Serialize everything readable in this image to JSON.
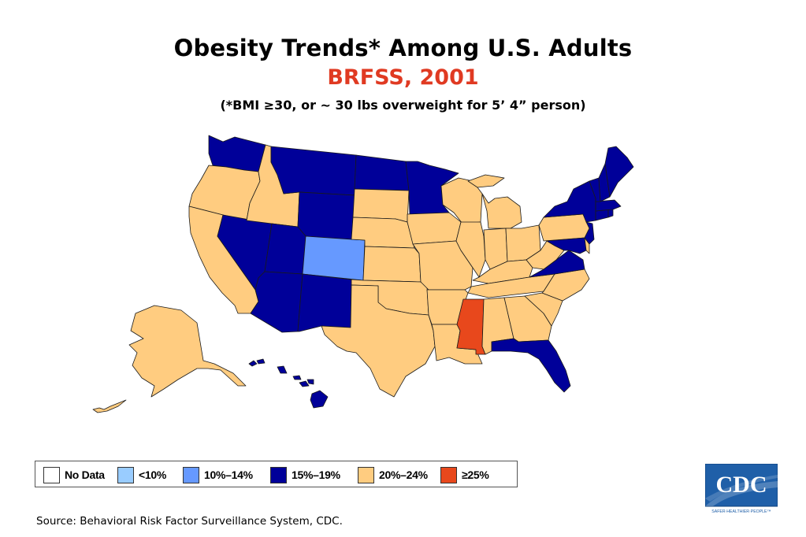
{
  "header": {
    "title": "Obesity Trends* Among U.S. Adults",
    "subtitle": "BRFSS, 2001",
    "note": "(*BMI ≥30, or ~ 30 lbs overweight for 5’ 4” person)"
  },
  "colors": {
    "no_data": "#ffffff",
    "lt10": "#99ccff",
    "b10_14": "#6699ff",
    "b15_19": "#000099",
    "b20_24": "#ffcc80",
    "ge25": "#e8481c",
    "border": "#1a1a1a"
  },
  "legend": [
    {
      "label": "No Data",
      "category": "no_data"
    },
    {
      "label": "<10%",
      "category": "lt10"
    },
    {
      "label": "10%–14%",
      "category": "b10_14"
    },
    {
      "label": "15%–19%",
      "category": "b15_19"
    },
    {
      "label": "20%–24%",
      "category": "b20_24"
    },
    {
      "label": "≥25%",
      "category": "ge25"
    }
  ],
  "states": {
    "WA": "b15_19",
    "OR": "b20_24",
    "CA": "b20_24",
    "NV": "b15_19",
    "ID": "b20_24",
    "MT": "b15_19",
    "WY": "b15_19",
    "UT": "b15_19",
    "AZ": "b15_19",
    "CO": "b10_14",
    "NM": "b15_19",
    "ND": "b15_19",
    "SD": "b20_24",
    "NE": "b20_24",
    "KS": "b20_24",
    "OK": "b20_24",
    "TX": "b20_24",
    "MN": "b15_19",
    "IA": "b20_24",
    "MO": "b20_24",
    "AR": "b20_24",
    "LA": "b20_24",
    "WI": "b20_24",
    "IL": "b20_24",
    "MI": "b20_24",
    "IN": "b20_24",
    "OH": "b20_24",
    "KY": "b20_24",
    "TN": "b20_24",
    "MS": "ge25",
    "AL": "b20_24",
    "GA": "b20_24",
    "FL": "b15_19",
    "SC": "b20_24",
    "NC": "b20_24",
    "VA": "b15_19",
    "WV": "b20_24",
    "PA": "b20_24",
    "NY": "b15_19",
    "VT": "b15_19",
    "NH": "b15_19",
    "ME": "b15_19",
    "MA": "b15_19",
    "CT": "b15_19",
    "RI": "b15_19",
    "NJ": "b15_19",
    "DE": "b20_24",
    "MD": "b15_19",
    "AK": "b20_24",
    "HI": "b15_19"
  },
  "source": "Source: Behavioral Risk Factor Surveillance System, CDC.",
  "logo": {
    "text": "CDC",
    "tagline": "SAFER·HEALTHIER·PEOPLE™"
  }
}
